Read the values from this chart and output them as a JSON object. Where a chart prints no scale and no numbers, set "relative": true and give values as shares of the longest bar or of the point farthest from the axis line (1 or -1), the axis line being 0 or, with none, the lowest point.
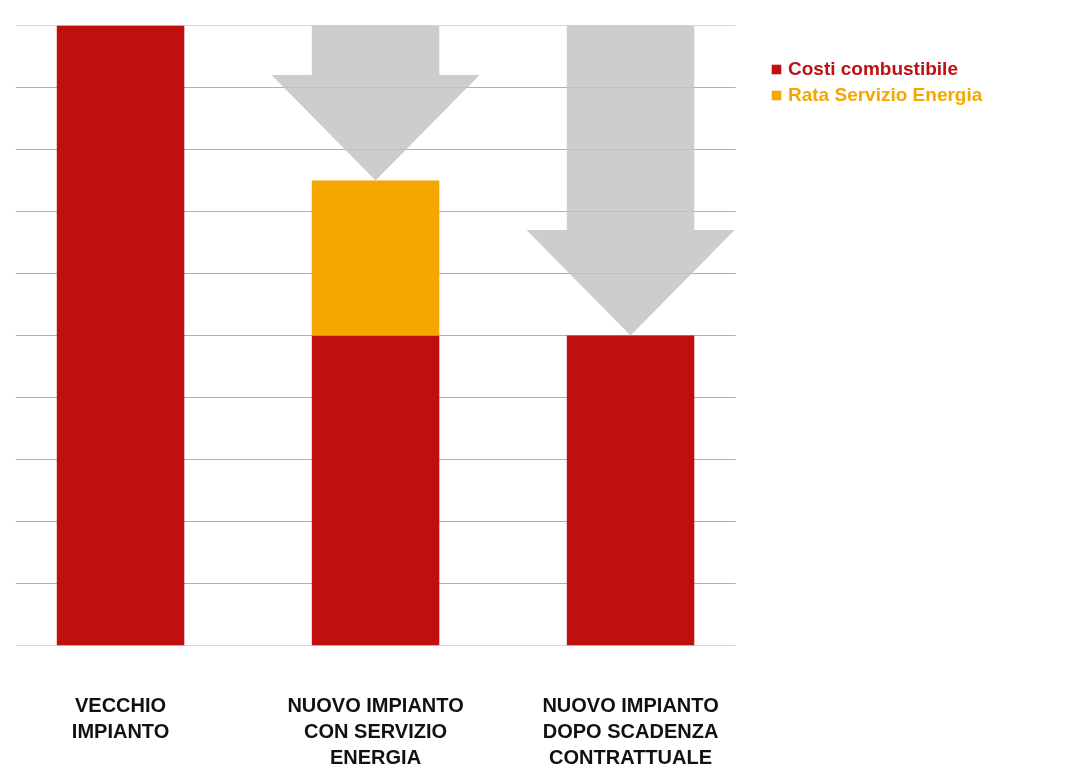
{
  "chart_data": {
    "type": "bar",
    "stacked": true,
    "relative": true,
    "grid": "y",
    "legend": "top right",
    "categories": [
      "VECCHIO IMPIANTO",
      "NUOVO IMPIANTO CON SERVIZIO ENERGIA",
      "NUOVO IMPIANTO DOPO SCADENZA CONTRATTUALE"
    ],
    "series": [
      {
        "name": "Costi combustibile",
        "color": "#c00f0f",
        "values": [
          1,
          0.5,
          0.5
        ]
      },
      {
        "name": "Rata Servizio Energia",
        "color": "#f5a700",
        "values": [
          null,
          0.25,
          null
        ]
      }
    ]
  }
}
